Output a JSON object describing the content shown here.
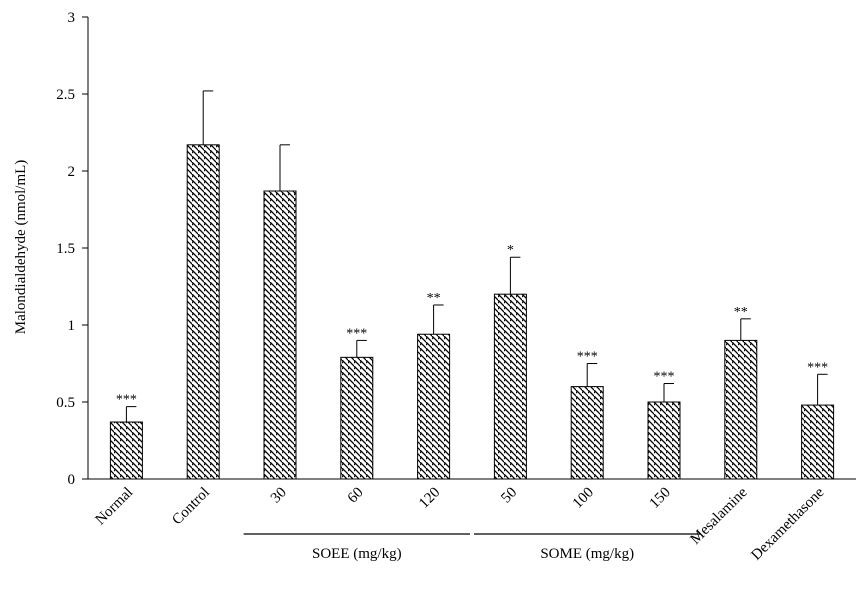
{
  "chart_data": {
    "type": "bar",
    "title": "",
    "xlabel": "",
    "ylabel": "Malondialdehyde (nmol/mL)",
    "ylim": [
      0,
      3
    ],
    "yticks": [
      "0",
      "0.5",
      "1",
      "1.5",
      "2",
      "2.5",
      "3"
    ],
    "grid": false,
    "legend": "none",
    "bar_pattern": "diagonal-hatch",
    "categories": [
      "Normal",
      "Control",
      "30",
      "60",
      "120",
      "50",
      "100",
      "150",
      "Mesalamine",
      "Dexamethasone"
    ],
    "values": [
      0.37,
      2.17,
      1.87,
      0.79,
      0.94,
      1.2,
      0.6,
      0.5,
      0.9,
      0.48
    ],
    "errors": [
      0.1,
      0.35,
      0.3,
      0.11,
      0.19,
      0.24,
      0.15,
      0.12,
      0.14,
      0.2
    ],
    "significance": [
      "***",
      "",
      "",
      "***",
      "**",
      "*",
      "***",
      "***",
      "**",
      "***"
    ],
    "groups": [
      {
        "label": "SOEE (mg/kg)",
        "categories": [
          "30",
          "60",
          "120"
        ]
      },
      {
        "label": "SOME (mg/kg)",
        "categories": [
          "50",
          "100",
          "150"
        ]
      }
    ]
  }
}
